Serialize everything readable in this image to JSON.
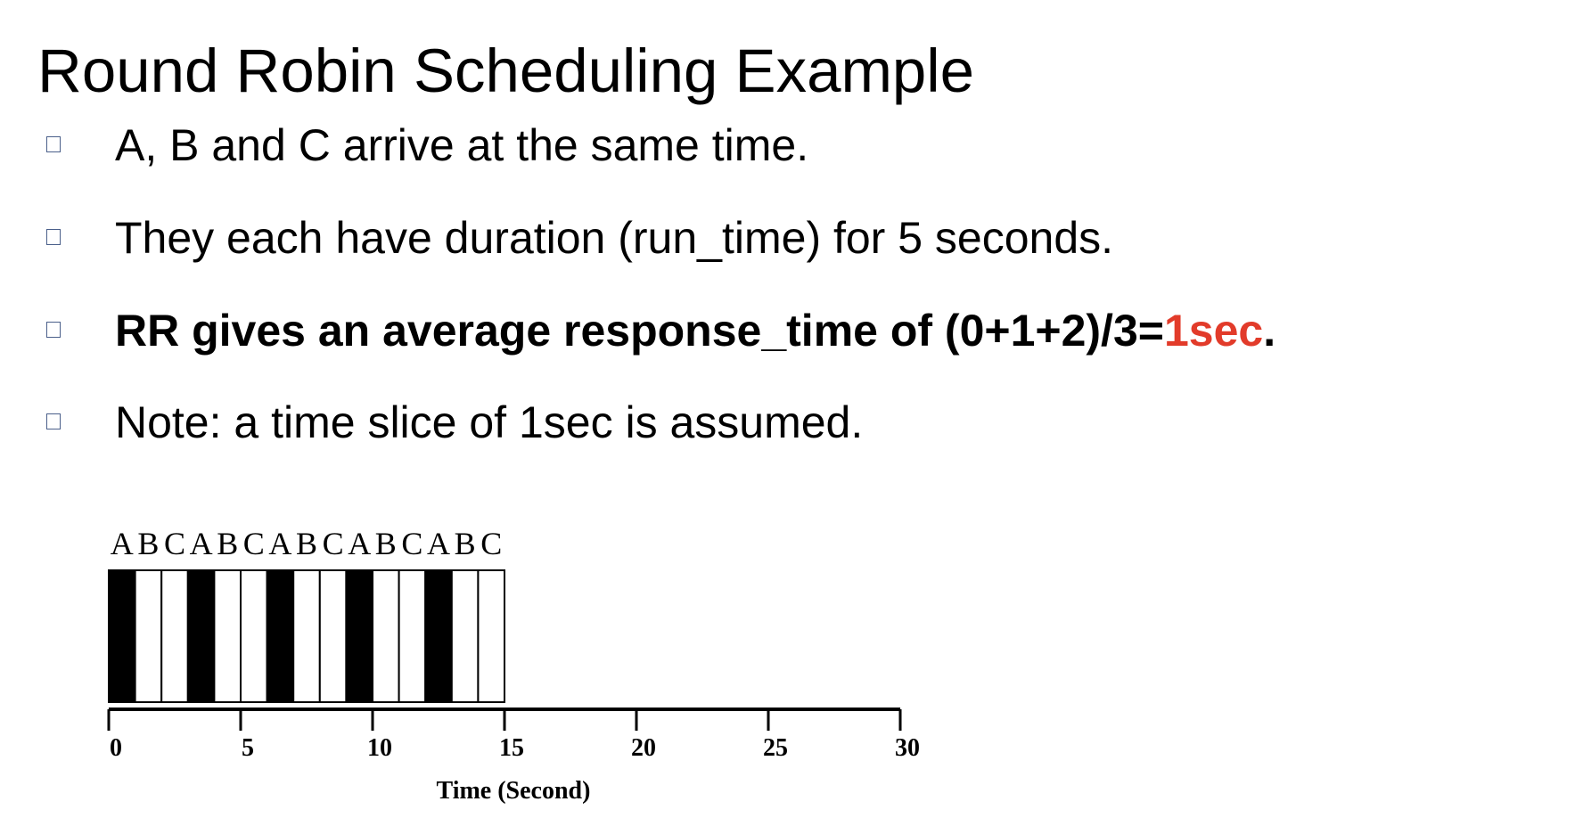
{
  "slide": {
    "title": "Round Robin Scheduling Example",
    "bullet_icon": "hollow-square",
    "bullet_icon_color": "#4a5f8a",
    "bullets": [
      {
        "text": "A, B and C arrive at the same time.",
        "bold": false
      },
      {
        "text": "They each have duration (run_time) for 5 seconds.",
        "bold": false
      },
      {
        "text_before": "RR gives an average response_time of (0+1+2)/3=",
        "highlight": "1sec",
        "text_after": ".",
        "bold": true,
        "highlight_color": "#e23b2a"
      },
      {
        "text": "Note: a time slice of 1sec is assumed.",
        "bold": false
      }
    ]
  },
  "chart_data": {
    "type": "timeline",
    "slice_labels": [
      "A",
      "B",
      "C",
      "A",
      "B",
      "C",
      "A",
      "B",
      "C",
      "A",
      "B",
      "C",
      "A",
      "B",
      "C"
    ],
    "slices": [
      {
        "job": "A",
        "start": 0,
        "end": 1,
        "fill": "#000000"
      },
      {
        "job": "B",
        "start": 1,
        "end": 2,
        "fill": "#ffffff"
      },
      {
        "job": "C",
        "start": 2,
        "end": 3,
        "fill": "#ffffff"
      },
      {
        "job": "A",
        "start": 3,
        "end": 4,
        "fill": "#000000"
      },
      {
        "job": "B",
        "start": 4,
        "end": 5,
        "fill": "#ffffff"
      },
      {
        "job": "C",
        "start": 5,
        "end": 6,
        "fill": "#ffffff"
      },
      {
        "job": "A",
        "start": 6,
        "end": 7,
        "fill": "#000000"
      },
      {
        "job": "B",
        "start": 7,
        "end": 8,
        "fill": "#ffffff"
      },
      {
        "job": "C",
        "start": 8,
        "end": 9,
        "fill": "#ffffff"
      },
      {
        "job": "A",
        "start": 9,
        "end": 10,
        "fill": "#000000"
      },
      {
        "job": "B",
        "start": 10,
        "end": 11,
        "fill": "#ffffff"
      },
      {
        "job": "C",
        "start": 11,
        "end": 12,
        "fill": "#ffffff"
      },
      {
        "job": "A",
        "start": 12,
        "end": 13,
        "fill": "#000000"
      },
      {
        "job": "B",
        "start": 13,
        "end": 14,
        "fill": "#ffffff"
      },
      {
        "job": "C",
        "start": 14,
        "end": 15,
        "fill": "#ffffff"
      }
    ],
    "x_ticks": [
      0,
      5,
      10,
      15,
      20,
      25,
      30
    ],
    "xlim": [
      0,
      30
    ],
    "xlabel": "Time (Second)",
    "grid": false
  }
}
